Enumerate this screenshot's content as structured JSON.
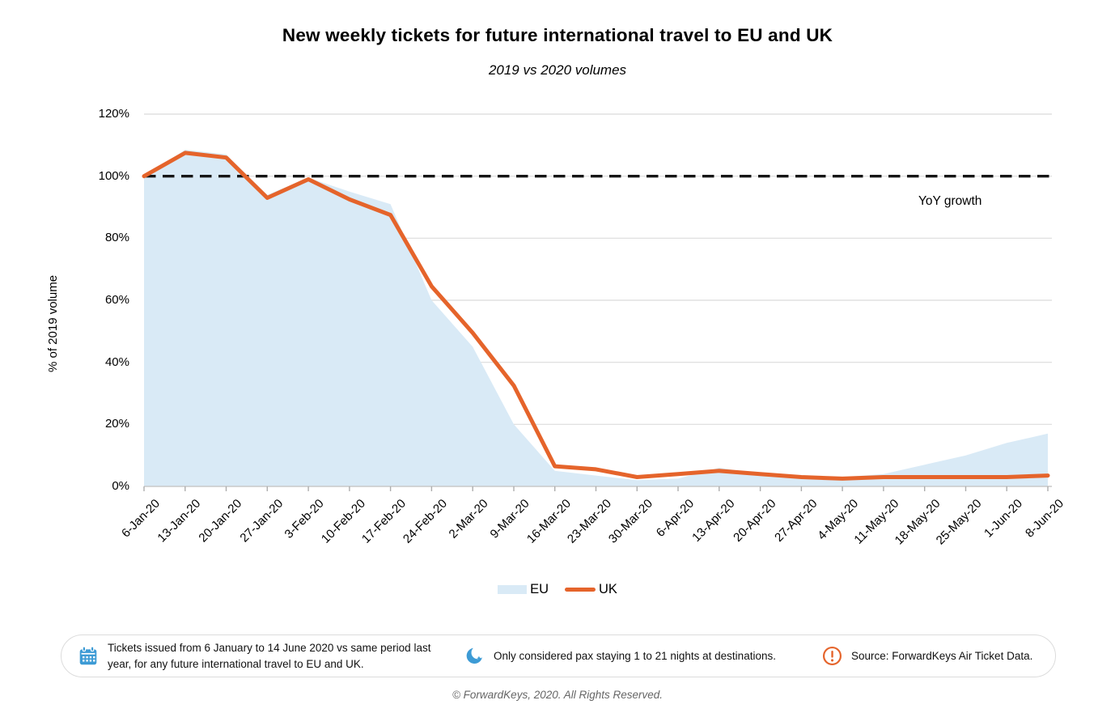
{
  "chart_data": {
    "type": "area-line-combo",
    "title": "New weekly tickets for future international travel to EU and UK",
    "subtitle": "2019 vs 2020 volumes",
    "ylabel": "% of 2019 volume",
    "categories": [
      "6-Jan-20",
      "13-Jan-20",
      "20-Jan-20",
      "27-Jan-20",
      "3-Feb-20",
      "10-Feb-20",
      "17-Feb-20",
      "24-Feb-20",
      "2-Mar-20",
      "9-Mar-20",
      "16-Mar-20",
      "23-Mar-20",
      "30-Mar-20",
      "6-Apr-20",
      "13-Apr-20",
      "20-Apr-20",
      "27-Apr-20",
      "4-May-20",
      "11-May-20",
      "18-May-20",
      "25-May-20",
      "1-Jun-20",
      "8-Jun-20"
    ],
    "series": [
      {
        "name": "EU",
        "type": "area",
        "color": "#D9EAF6",
        "values": [
          100,
          108.5,
          107,
          94,
          99.5,
          95,
          91,
          60,
          45,
          20,
          5,
          3.5,
          2,
          2.5,
          6,
          4,
          3.5,
          3,
          4,
          7,
          10,
          14,
          17
        ]
      },
      {
        "name": "UK",
        "type": "line",
        "color": "#E5642B",
        "values": [
          100,
          107.5,
          106,
          93,
          99,
          92.5,
          87.5,
          64.5,
          49.5,
          32.5,
          6.5,
          5.5,
          3,
          4,
          5,
          4,
          3,
          2.5,
          3,
          3,
          3,
          3,
          3.5
        ]
      }
    ],
    "ylim": [
      0,
      120
    ],
    "yticks": [
      120,
      100,
      80,
      60,
      40,
      20,
      0
    ],
    "ytick_labels": [
      "120%",
      "100%",
      "80%",
      "60%",
      "40%",
      "20%",
      "0%"
    ],
    "grid": true,
    "legend_position": "bottom",
    "reference_line": {
      "value": 100,
      "label": "YoY growth",
      "style": "dashed",
      "color": "#161616"
    }
  },
  "footnotes": {
    "items": [
      {
        "icon": "calendar-icon",
        "text": "Tickets issued from 6 January to 14 June 2020 vs same period last year, for any future international travel to EU and UK."
      },
      {
        "icon": "moon-icon",
        "text": "Only considered pax staying 1 to 21 nights at destinations."
      },
      {
        "icon": "alert-icon",
        "text": "Source: ForwardKeys Air Ticket Data."
      }
    ]
  },
  "footer": {
    "copyright": "© ForwardKeys, 2020. All Rights Reserved."
  }
}
